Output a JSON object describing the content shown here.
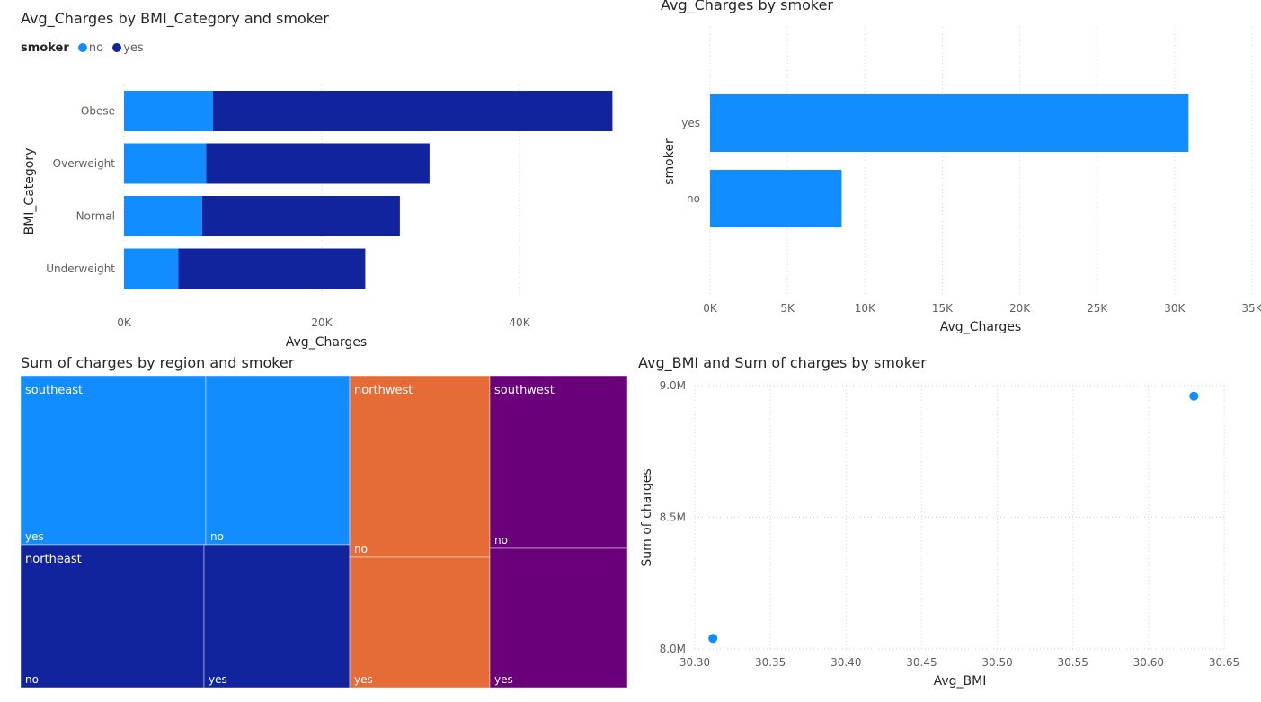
{
  "charts": {
    "bmi": {
      "title": "Avg_Charges by BMI_Category and smoker",
      "legend_title": "smoker",
      "chart_data": {
        "type": "bar",
        "orientation": "horizontal",
        "stacked": true,
        "categories": [
          "Obese",
          "Overweight",
          "Normal",
          "Underweight"
        ],
        "series": [
          {
            "name": "no",
            "color": "#118DFF",
            "values": [
              9000,
              8300,
              7900,
              5500
            ]
          },
          {
            "name": "yes",
            "color": "#12239E",
            "values": [
              40400,
              22600,
              20000,
              18900
            ]
          }
        ],
        "xlabel": "Avg_Charges",
        "ylabel": "BMI_Category",
        "xlim": [
          0,
          50000
        ],
        "xticks": [
          0,
          20000,
          40000
        ],
        "xtick_labels": [
          "0K",
          "20K",
          "40K"
        ],
        "grid": true,
        "legend_position": "top-left"
      }
    },
    "smoker": {
      "title": "Avg_Charges by smoker",
      "chart_data": {
        "type": "bar",
        "orientation": "horizontal",
        "categories": [
          "yes",
          "no"
        ],
        "values": [
          30900,
          8500
        ],
        "color": "#118DFF",
        "xlabel": "Avg_Charges",
        "ylabel": "smoker",
        "xlim": [
          0,
          35000
        ],
        "xticks": [
          0,
          5000,
          10000,
          15000,
          20000,
          25000,
          30000,
          35000
        ],
        "xtick_labels": [
          "0K",
          "5K",
          "10K",
          "15K",
          "20K",
          "25K",
          "30K",
          "35K"
        ],
        "grid": true
      }
    },
    "region": {
      "title": "Sum of charges by region and smoker",
      "chart_data": {
        "type": "treemap",
        "groups": [
          {
            "name": "southeast",
            "color": "#118DFF",
            "children": [
              "yes",
              "no"
            ]
          },
          {
            "name": "northeast",
            "color": "#12239E",
            "children": [
              "no",
              "yes"
            ]
          },
          {
            "name": "northwest",
            "color": "#E66C37",
            "children": [
              "no",
              "yes"
            ]
          },
          {
            "name": "southwest",
            "color": "#6B007B",
            "children": [
              "no",
              "yes"
            ]
          }
        ]
      }
    },
    "scatter": {
      "title": "Avg_BMI and Sum of charges by smoker",
      "chart_data": {
        "type": "scatter",
        "points": [
          {
            "x": 30.312,
            "y": 8.04
          },
          {
            "x": 30.63,
            "y": 8.96
          }
        ],
        "color": "#118DFF",
        "xlabel": "Avg_BMI",
        "ylabel": "Sum of charges",
        "xlim": [
          30.3,
          30.65
        ],
        "ylim": [
          8.0,
          9.0
        ],
        "xticks": [
          30.3,
          30.35,
          30.4,
          30.45,
          30.5,
          30.55,
          30.6,
          30.65
        ],
        "xtick_labels": [
          "30.30",
          "30.35",
          "30.40",
          "30.45",
          "30.50",
          "30.55",
          "30.60",
          "30.65"
        ],
        "yticks": [
          8.0,
          8.5,
          9.0
        ],
        "ytick_labels": [
          "8.0M",
          "8.5M",
          "9.0M"
        ],
        "grid": true
      }
    }
  }
}
